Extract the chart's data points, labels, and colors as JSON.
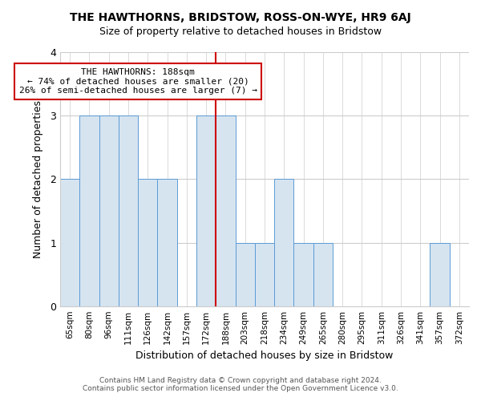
{
  "title": "THE HAWTHORNS, BRIDSTOW, ROSS-ON-WYE, HR9 6AJ",
  "subtitle": "Size of property relative to detached houses in Bridstow",
  "xlabel": "Distribution of detached houses by size in Bridstow",
  "ylabel": "Number of detached properties",
  "categories": [
    "65sqm",
    "80sqm",
    "96sqm",
    "111sqm",
    "126sqm",
    "142sqm",
    "157sqm",
    "172sqm",
    "188sqm",
    "203sqm",
    "218sqm",
    "234sqm",
    "249sqm",
    "265sqm",
    "280sqm",
    "295sqm",
    "311sqm",
    "326sqm",
    "341sqm",
    "357sqm",
    "372sqm"
  ],
  "values": [
    2,
    3,
    3,
    3,
    2,
    2,
    0,
    3,
    3,
    1,
    1,
    2,
    1,
    1,
    0,
    0,
    0,
    0,
    0,
    1,
    0
  ],
  "highlight_index": 8,
  "bar_color": "#d6e4f0",
  "bar_edge_color": "#5b9bd5",
  "highlight_line_color": "#cc0000",
  "ylim": [
    0,
    4
  ],
  "yticks": [
    0,
    1,
    2,
    3,
    4
  ],
  "annotation_title": "THE HAWTHORNS: 188sqm",
  "annotation_line1": "← 74% of detached houses are smaller (20)",
  "annotation_line2": "26% of semi-detached houses are larger (7) →",
  "annotation_box_color": "#ffffff",
  "annotation_box_edge": "#cc0000",
  "footer_line1": "Contains HM Land Registry data © Crown copyright and database right 2024.",
  "footer_line2": "Contains public sector information licensed under the Open Government Licence v3.0.",
  "background_color": "#ffffff",
  "grid_color": "#cccccc"
}
